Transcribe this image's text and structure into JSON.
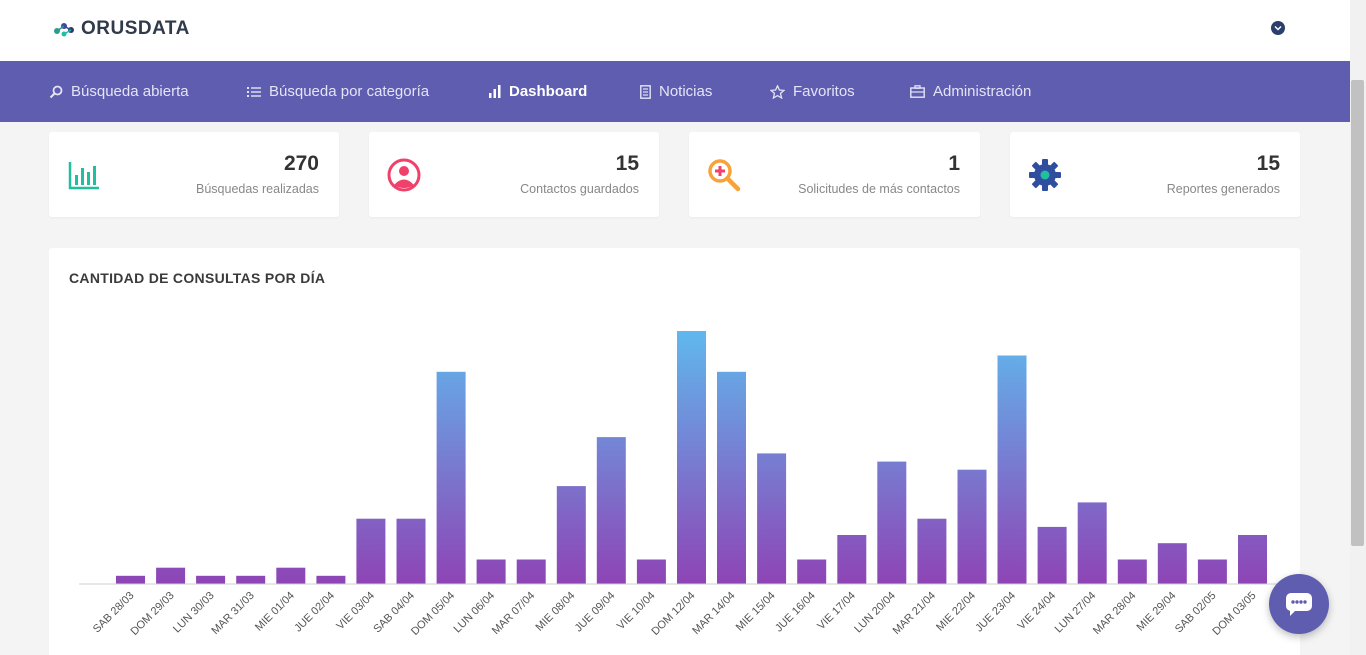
{
  "brand": {
    "name": "ORUSDATA"
  },
  "nav": {
    "items": [
      {
        "label": "Búsqueda abierta",
        "icon": "search-icon"
      },
      {
        "label": "Búsqueda por categoría",
        "icon": "list-icon"
      },
      {
        "label": "Dashboard",
        "icon": "bar-chart-icon",
        "active": true
      },
      {
        "label": "Noticias",
        "icon": "document-icon"
      },
      {
        "label": "Favoritos",
        "icon": "star-icon"
      },
      {
        "label": "Administración",
        "icon": "briefcase-icon"
      }
    ]
  },
  "stats": [
    {
      "value": "270",
      "label": "Búsquedas realizadas",
      "icon": "analytics-icon",
      "color": "#1fbfa0"
    },
    {
      "value": "15",
      "label": "Contactos guardados",
      "icon": "user-icon",
      "color": "#f0416a"
    },
    {
      "value": "1",
      "label": "Solicitudes de más contactos",
      "icon": "zoom-in-icon",
      "color": "#f7a23b"
    },
    {
      "value": "15",
      "label": "Reportes generados",
      "icon": "gear-icon",
      "color": "#2f4f9e"
    }
  ],
  "colors": {
    "nav_bg": "#5f5db0",
    "bar_top": "#60b8ee",
    "bar_bottom": "#8e44b5"
  },
  "chart_data": {
    "type": "bar",
    "title": "CANTIDAD DE CONSULTAS POR DÍA",
    "categories": [
      "SAB 28/03",
      "DOM 29/03",
      "LUN 30/03",
      "MAR 31/03",
      "MIE 01/04",
      "JUE 02/04",
      "VIE 03/04",
      "SAB 04/04",
      "DOM 05/04",
      "LUN 06/04",
      "MAR 07/04",
      "MIE 08/04",
      "JUE 09/04",
      "VIE 10/04",
      "DOM 12/04",
      "MAR 14/04",
      "MIE 15/04",
      "JUE 16/04",
      "VIE 17/04",
      "LUN 20/04",
      "MAR 21/04",
      "MIE 22/04",
      "JUE 23/04",
      "VIE 24/04",
      "LUN 27/04",
      "MAR 28/04",
      "MIE 29/04",
      "SAB 02/05",
      "DOM 03/05"
    ],
    "values": [
      1,
      2,
      1,
      1,
      2,
      1,
      8,
      8,
      26,
      3,
      3,
      12,
      18,
      3,
      31,
      26,
      16,
      3,
      6,
      15,
      8,
      14,
      28,
      7,
      10,
      3,
      5,
      3,
      6
    ],
    "ylim": [
      0,
      31
    ],
    "grid": false,
    "legend": "none"
  }
}
